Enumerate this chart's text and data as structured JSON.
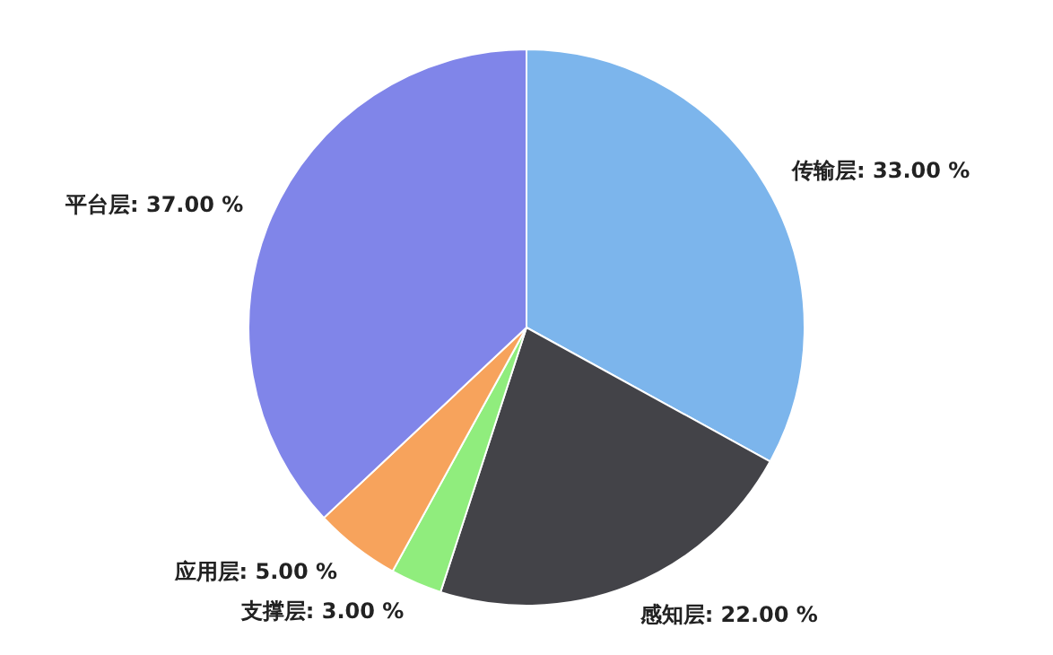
{
  "chart_data": {
    "type": "pie",
    "categories": [
      "传输层",
      "感知层",
      "支撑层",
      "应用层",
      "平台层"
    ],
    "values": [
      33,
      22,
      3,
      5,
      37
    ],
    "value_labels": [
      "33.00 %",
      "22.00 %",
      "3.00 %",
      "5.00 %",
      "37.00 %"
    ],
    "colors": [
      "#7cb5ec",
      "#434348",
      "#90ed7d",
      "#f7a35c",
      "#8085e9"
    ]
  }
}
